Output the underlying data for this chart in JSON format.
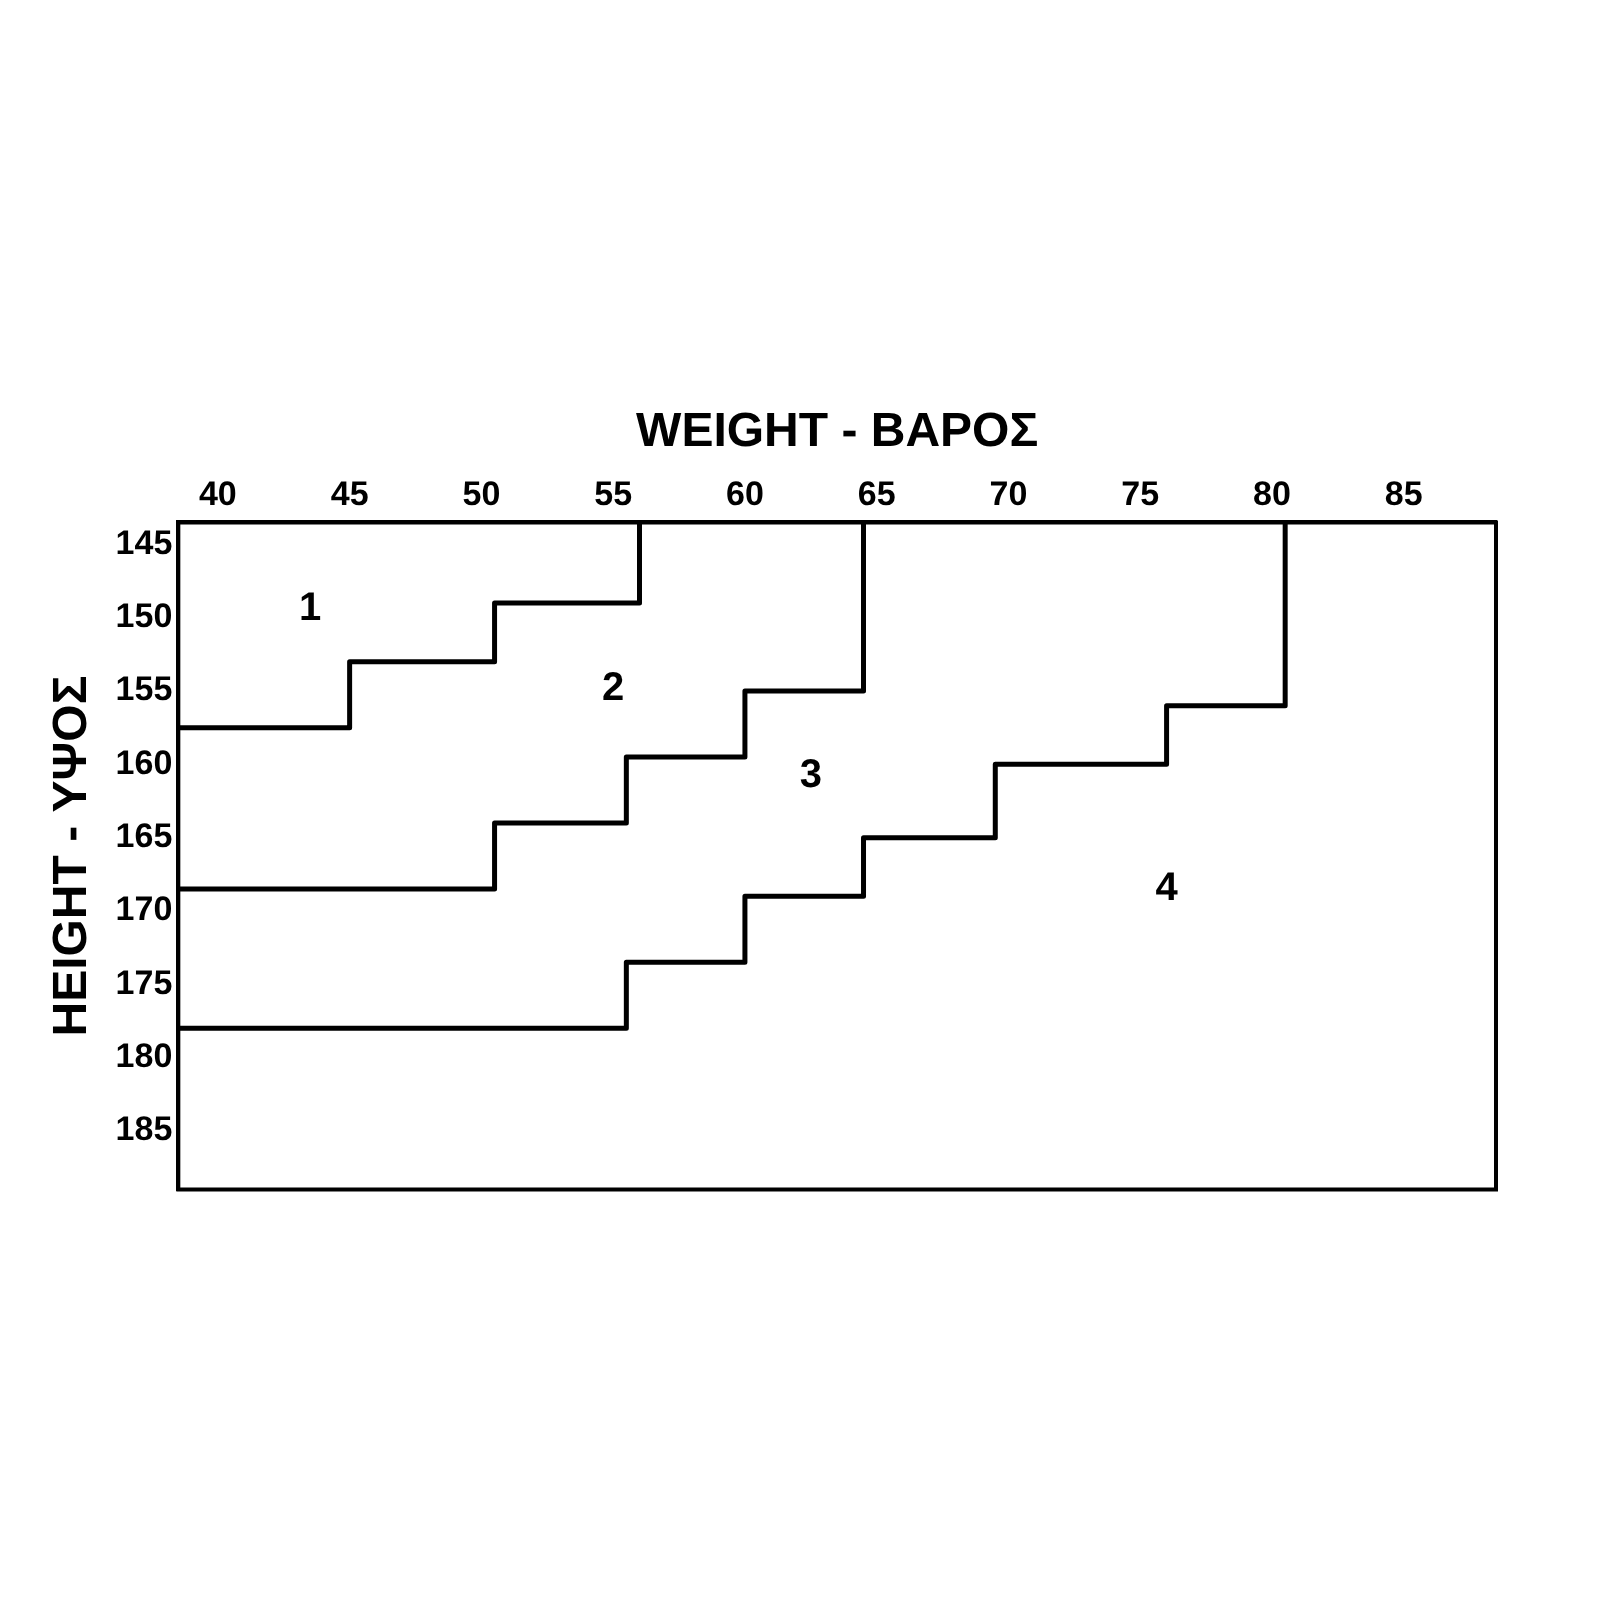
{
  "chart_data": {
    "type": "step",
    "xlabel": "WEIGHT - ΒΑΡΟΣ",
    "ylabel": "HEIGHT - ΥΨΟΣ",
    "xlim": [
      38.5,
      88.5
    ],
    "xticks": [
      40,
      45,
      50,
      55,
      60,
      65,
      70,
      75,
      80,
      85
    ],
    "ylim": [
      189,
      143.5
    ],
    "yticks": [
      145,
      150,
      155,
      160,
      165,
      170,
      175,
      180,
      185
    ],
    "series": [
      {
        "color": "#000000",
        "x": [
          38.5,
          45,
          50.5,
          56
        ],
        "values": [
          157.5,
          153,
          149,
          143.5
        ]
      },
      {
        "color": "#000000",
        "x": [
          38.5,
          50.5,
          55.5,
          60,
          64.5
        ],
        "values": [
          168.5,
          164,
          159.5,
          155,
          143.5
        ]
      },
      {
        "color": "#000000",
        "x": [
          38.5,
          55.5,
          60,
          64.5,
          69.5,
          76,
          80.5
        ],
        "values": [
          178,
          173.5,
          169,
          165,
          160,
          156,
          143.5
        ]
      }
    ],
    "annotations": [
      "1",
      "2",
      "3",
      "4"
    ],
    "grid": false,
    "legend": false,
    "marker": "none",
    "line_style": "solid"
  }
}
